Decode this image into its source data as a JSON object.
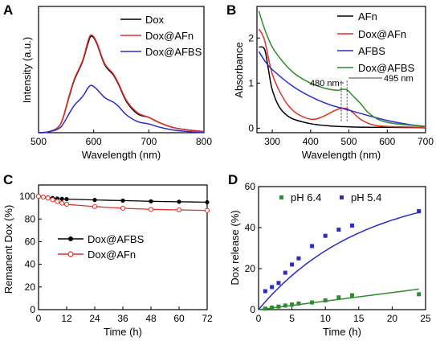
{
  "figure": {
    "panels": [
      {
        "id": "A",
        "letter": "A"
      },
      {
        "id": "B",
        "letter": "B"
      },
      {
        "id": "C",
        "letter": "C"
      },
      {
        "id": "D",
        "letter": "D"
      }
    ]
  },
  "chart_data": [
    {
      "id": "A",
      "type": "line",
      "title": "",
      "xlabel": "Wavelength (nm)",
      "ylabel": "Intensity (a.u.)",
      "xlim": [
        500,
        800
      ],
      "ylim": [
        0,
        1.15
      ],
      "xticks": [
        500,
        600,
        700,
        800
      ],
      "yticks_shown": false,
      "legend": "top-right",
      "series": [
        {
          "name": "Dox",
          "color": "#000000",
          "x": [
            500,
            520,
            540,
            555,
            565,
            580,
            590,
            596,
            605,
            620,
            635,
            645,
            660,
            680,
            700,
            720,
            750,
            800
          ],
          "y": [
            0.0,
            0.01,
            0.08,
            0.32,
            0.48,
            0.65,
            0.82,
            0.88,
            0.82,
            0.62,
            0.53,
            0.44,
            0.28,
            0.17,
            0.14,
            0.09,
            0.04,
            0.01
          ]
        },
        {
          "name": "Dox@AFn",
          "color": "#e0302a",
          "x": [
            500,
            520,
            540,
            555,
            565,
            580,
            590,
            596,
            605,
            620,
            635,
            645,
            660,
            680,
            700,
            720,
            750,
            800
          ],
          "y": [
            0.0,
            0.01,
            0.08,
            0.33,
            0.49,
            0.66,
            0.84,
            0.89,
            0.83,
            0.63,
            0.54,
            0.45,
            0.29,
            0.18,
            0.14,
            0.09,
            0.04,
            0.01
          ]
        },
        {
          "name": "Dox@AFBS",
          "color": "#2b2bc8",
          "x": [
            500,
            520,
            540,
            555,
            565,
            580,
            590,
            596,
            605,
            620,
            635,
            645,
            660,
            680,
            700,
            720,
            750,
            800
          ],
          "y": [
            0.0,
            0.01,
            0.05,
            0.17,
            0.25,
            0.33,
            0.41,
            0.43,
            0.4,
            0.32,
            0.28,
            0.24,
            0.16,
            0.1,
            0.08,
            0.05,
            0.02,
            0.0
          ]
        }
      ]
    },
    {
      "id": "B",
      "type": "line",
      "title": "",
      "xlabel": "Wavelength (nm)",
      "ylabel": "Absorbance",
      "xlim": [
        260,
        700
      ],
      "ylim": [
        -0.1,
        2.7
      ],
      "xticks": [
        300,
        400,
        500,
        600,
        700
      ],
      "yticks": [
        0,
        1,
        2
      ],
      "legend": "top-right",
      "annotations": [
        {
          "text": "480 nm",
          "x": 480
        },
        {
          "text": "495 nm",
          "x": 495
        }
      ],
      "series": [
        {
          "name": "AFn",
          "color": "#000000",
          "x": [
            265,
            280,
            290,
            300,
            320,
            350,
            400,
            450,
            500,
            550,
            600,
            700
          ],
          "y": [
            1.8,
            1.75,
            1.3,
            0.85,
            0.45,
            0.22,
            0.1,
            0.05,
            0.03,
            0.02,
            0.02,
            0.01
          ]
        },
        {
          "name": "Dox@AFn",
          "color": "#e0302a",
          "x": [
            265,
            280,
            300,
            330,
            360,
            400,
            430,
            460,
            480,
            495,
            510,
            530,
            560,
            600,
            700
          ],
          "y": [
            2.2,
            1.95,
            1.2,
            0.65,
            0.35,
            0.2,
            0.25,
            0.38,
            0.44,
            0.43,
            0.35,
            0.2,
            0.08,
            0.04,
            0.02
          ]
        },
        {
          "name": "AFBS",
          "color": "#2b2bc8",
          "x": [
            265,
            280,
            300,
            350,
            400,
            450,
            500,
            550,
            600,
            650,
            700
          ],
          "y": [
            1.7,
            1.5,
            1.3,
            0.95,
            0.7,
            0.52,
            0.4,
            0.28,
            0.17,
            0.09,
            0.04
          ]
        },
        {
          "name": "Dox@AFBS",
          "color": "#2e8b2e",
          "x": [
            265,
            280,
            300,
            330,
            360,
            400,
            440,
            470,
            480,
            495,
            510,
            530,
            550,
            580,
            620,
            700
          ],
          "y": [
            2.6,
            2.2,
            1.8,
            1.45,
            1.2,
            1.0,
            0.88,
            0.84,
            0.86,
            0.85,
            0.72,
            0.55,
            0.35,
            0.18,
            0.1,
            0.04
          ]
        }
      ]
    },
    {
      "id": "C",
      "type": "line",
      "title": "",
      "xlabel": "Time (h)",
      "ylabel": "Remanent Dox (%)",
      "xlim": [
        0,
        72
      ],
      "ylim": [
        0,
        110
      ],
      "xticks": [
        0,
        12,
        24,
        36,
        48,
        60,
        72
      ],
      "yticks": [
        0,
        20,
        40,
        60,
        80,
        100
      ],
      "legend": "center",
      "series": [
        {
          "name": "Dox@AFBS",
          "color": "#000000",
          "marker": "filled-circle",
          "x": [
            0,
            2,
            4,
            6,
            8,
            10,
            12,
            24,
            36,
            48,
            60,
            72
          ],
          "y": [
            100,
            99.5,
            99,
            98.5,
            98,
            97.8,
            97.5,
            96.8,
            96.2,
            95.6,
            95.2,
            94.8
          ]
        },
        {
          "name": "Dox@AFn",
          "color": "#e0302a",
          "marker": "open-circle",
          "x": [
            0,
            2,
            4,
            6,
            8,
            10,
            12,
            24,
            36,
            48,
            60,
            72
          ],
          "y": [
            100,
            99.3,
            98.5,
            97,
            95.5,
            94,
            93,
            91,
            89.5,
            88.5,
            88,
            87.5
          ]
        }
      ]
    },
    {
      "id": "D",
      "type": "scatter",
      "title": "",
      "xlabel": "Time (h)",
      "ylabel": "Dox release (%)",
      "xlim": [
        0,
        25
      ],
      "ylim": [
        0,
        60
      ],
      "xticks": [
        0,
        5,
        10,
        15,
        20,
        25
      ],
      "yticks": [
        0,
        20,
        40,
        60
      ],
      "legend": "top",
      "series": [
        {
          "name": "pH 6.4",
          "color": "#2e8b2e",
          "x": [
            1,
            2,
            3,
            4,
            5,
            6,
            8,
            10,
            12,
            14,
            24
          ],
          "y": [
            0.5,
            1.0,
            1.5,
            2.0,
            2.5,
            3.0,
            3.5,
            4.5,
            6.0,
            7.0,
            7.5
          ],
          "fit": {
            "x0": 0,
            "y0": 0,
            "x1": 24,
            "y1": 10
          }
        },
        {
          "name": "pH 5.4",
          "color": "#2b2bc8",
          "x": [
            1,
            2,
            3,
            4,
            5,
            6,
            8,
            10,
            12,
            14,
            24
          ],
          "y": [
            9,
            11,
            13,
            18,
            22,
            25,
            31,
            36,
            39,
            41,
            48
          ],
          "fit": {
            "plateau": 60,
            "rate": 0.065
          }
        }
      ]
    }
  ]
}
